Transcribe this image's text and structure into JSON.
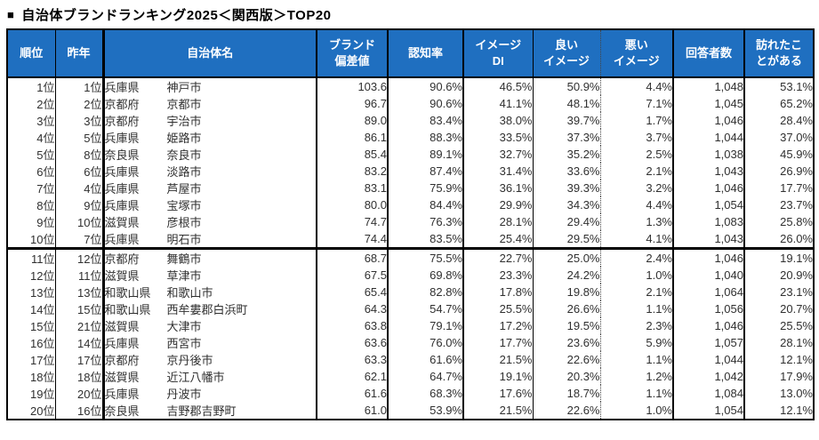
{
  "title": {
    "bullet": "■",
    "text": "自治体ブランドランキング2025＜関西版＞TOP20"
  },
  "colors": {
    "header_bg": "#1f6fc0",
    "header_text": "#ffffff",
    "border": "#000000",
    "body_text": "#303030"
  },
  "table": {
    "header_labels": [
      "順位",
      "昨年",
      "自治体名",
      "ブランド\n偏差値",
      "認知率",
      "イメージ\nDI",
      "良い\nイメージ",
      "悪い\nイメージ",
      "回答者数",
      "訪れたこ\nとがある"
    ]
  },
  "chart_data": {
    "type": "table",
    "title": "自治体ブランドランキング2025＜関西版＞TOP20",
    "columns": [
      "順位",
      "昨年",
      "自治体名（都道府県）",
      "自治体名（市区町村）",
      "ブランド偏差値",
      "認知率",
      "イメージDI",
      "良いイメージ",
      "悪いイメージ",
      "回答者数",
      "訪れたことがある"
    ],
    "rows": [
      [
        "1位",
        "1位",
        "兵庫県",
        "神戸市",
        "103.6",
        "90.6%",
        "46.5%",
        "50.9%",
        "4.4%",
        "1,048",
        "53.1%"
      ],
      [
        "2位",
        "2位",
        "京都府",
        "京都市",
        "96.7",
        "90.6%",
        "41.1%",
        "48.1%",
        "7.1%",
        "1,045",
        "65.2%"
      ],
      [
        "3位",
        "3位",
        "京都府",
        "宇治市",
        "89.0",
        "83.4%",
        "38.0%",
        "39.7%",
        "1.7%",
        "1,046",
        "28.4%"
      ],
      [
        "4位",
        "5位",
        "兵庫県",
        "姫路市",
        "86.1",
        "88.3%",
        "33.5%",
        "37.3%",
        "3.7%",
        "1,044",
        "37.0%"
      ],
      [
        "5位",
        "8位",
        "奈良県",
        "奈良市",
        "85.4",
        "89.1%",
        "32.7%",
        "35.2%",
        "2.5%",
        "1,038",
        "45.9%"
      ],
      [
        "6位",
        "6位",
        "兵庫県",
        "淡路市",
        "83.2",
        "87.4%",
        "31.4%",
        "33.6%",
        "2.1%",
        "1,043",
        "26.9%"
      ],
      [
        "7位",
        "4位",
        "兵庫県",
        "芦屋市",
        "83.1",
        "75.9%",
        "36.1%",
        "39.3%",
        "3.2%",
        "1,046",
        "17.7%"
      ],
      [
        "8位",
        "9位",
        "兵庫県",
        "宝塚市",
        "80.0",
        "84.4%",
        "29.9%",
        "34.3%",
        "4.4%",
        "1,054",
        "23.7%"
      ],
      [
        "9位",
        "10位",
        "滋賀県",
        "彦根市",
        "74.7",
        "76.3%",
        "28.1%",
        "29.4%",
        "1.3%",
        "1,083",
        "25.8%"
      ],
      [
        "10位",
        "7位",
        "兵庫県",
        "明石市",
        "74.4",
        "83.5%",
        "25.4%",
        "29.5%",
        "4.1%",
        "1,043",
        "26.0%"
      ],
      [
        "11位",
        "12位",
        "京都府",
        "舞鶴市",
        "68.7",
        "75.5%",
        "22.7%",
        "25.0%",
        "2.4%",
        "1,046",
        "19.1%"
      ],
      [
        "12位",
        "11位",
        "滋賀県",
        "草津市",
        "67.5",
        "69.8%",
        "23.3%",
        "24.2%",
        "1.0%",
        "1,040",
        "20.9%"
      ],
      [
        "13位",
        "13位",
        "和歌山県",
        "和歌山市",
        "65.4",
        "82.8%",
        "17.8%",
        "19.8%",
        "2.1%",
        "1,064",
        "23.1%"
      ],
      [
        "14位",
        "15位",
        "和歌山県",
        "西牟婁郡白浜町",
        "64.3",
        "54.7%",
        "25.5%",
        "26.6%",
        "1.1%",
        "1,056",
        "20.7%"
      ],
      [
        "15位",
        "21位",
        "滋賀県",
        "大津市",
        "63.8",
        "79.1%",
        "17.2%",
        "19.5%",
        "2.3%",
        "1,046",
        "25.5%"
      ],
      [
        "16位",
        "14位",
        "兵庫県",
        "西宮市",
        "63.6",
        "76.0%",
        "17.7%",
        "23.6%",
        "5.9%",
        "1,057",
        "28.1%"
      ],
      [
        "17位",
        "17位",
        "京都府",
        "京丹後市",
        "63.3",
        "61.6%",
        "21.5%",
        "22.6%",
        "1.1%",
        "1,044",
        "12.1%"
      ],
      [
        "18位",
        "18位",
        "滋賀県",
        "近江八幡市",
        "62.1",
        "64.7%",
        "19.1%",
        "20.3%",
        "1.2%",
        "1,042",
        "17.9%"
      ],
      [
        "19位",
        "20位",
        "兵庫県",
        "丹波市",
        "61.6",
        "68.3%",
        "17.6%",
        "18.7%",
        "1.1%",
        "1,084",
        "13.0%"
      ],
      [
        "20位",
        "16位",
        "奈良県",
        "吉野郡吉野町",
        "61.0",
        "53.9%",
        "21.5%",
        "22.6%",
        "1.0%",
        "1,054",
        "12.1%"
      ]
    ],
    "layout": {
      "top10_separator_after_row": 10,
      "grid": "vertical-lines-only",
      "dotted_divider_between": [
        "良いイメージ",
        "悪いイメージ"
      ]
    }
  }
}
